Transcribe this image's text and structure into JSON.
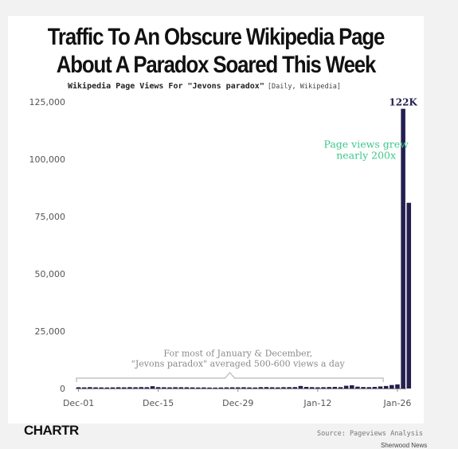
{
  "title_lines": [
    "Traffic To An Obscure Wikipedia Page",
    "About A Paradox Soared This Week"
  ],
  "subtitle": "Wikipedia Page Views For \"Jevons paradox\"",
  "subtitle_note": "[Daily, Wikipedia]",
  "brand": "CHARTR",
  "source": "Source: Pageviews Analysis",
  "credit": "Sherwood News",
  "colors": {
    "bars": "#231f4f",
    "highlight_text": "#3cc88c",
    "annotation_text": "#8a8a8a",
    "bracket": "#b8b8b8",
    "axis": "#888888"
  },
  "chart_data": {
    "type": "bar",
    "title": "Wikipedia Page Views For \"Jevons paradox\"",
    "xlabel": "",
    "ylabel": "",
    "ylim": [
      0,
      125000
    ],
    "y_ticks": [
      0,
      25000,
      50000,
      75000,
      100000,
      125000
    ],
    "y_tick_labels": [
      "0",
      "25,000",
      "50,000",
      "75,000",
      "100,000",
      "125,000"
    ],
    "x_tick_labels": [
      "Dec-01",
      "Dec-15",
      "Dec-29",
      "Jan-12",
      "Jan-26"
    ],
    "x_tick_dates": [
      "2024-12-01",
      "2024-12-15",
      "2024-12-29",
      "2025-01-12",
      "2025-01-26"
    ],
    "series": [
      {
        "dates": [
          "2024-12-01",
          "2024-12-02",
          "2024-12-03",
          "2024-12-04",
          "2024-12-05",
          "2024-12-06",
          "2024-12-07",
          "2024-12-08",
          "2024-12-09",
          "2024-12-10",
          "2024-12-11",
          "2024-12-12",
          "2024-12-13",
          "2024-12-14",
          "2024-12-15",
          "2024-12-16",
          "2024-12-17",
          "2024-12-18",
          "2024-12-19",
          "2024-12-20",
          "2024-12-21",
          "2024-12-22",
          "2024-12-23",
          "2024-12-24",
          "2024-12-25",
          "2024-12-26",
          "2024-12-27",
          "2024-12-28",
          "2024-12-29",
          "2024-12-30",
          "2024-12-31",
          "2025-01-01",
          "2025-01-02",
          "2025-01-03",
          "2025-01-04",
          "2025-01-05",
          "2025-01-06",
          "2025-01-07",
          "2025-01-08",
          "2025-01-09",
          "2025-01-10",
          "2025-01-11",
          "2025-01-12",
          "2025-01-13",
          "2025-01-14",
          "2025-01-15",
          "2025-01-16",
          "2025-01-17",
          "2025-01-18",
          "2025-01-19",
          "2025-01-20",
          "2025-01-21",
          "2025-01-22",
          "2025-01-23",
          "2025-01-24",
          "2025-01-25",
          "2025-01-26",
          "2025-01-27",
          "2025-01-28"
        ],
        "values": [
          550,
          500,
          600,
          520,
          480,
          450,
          500,
          560,
          520,
          600,
          550,
          620,
          580,
          1000,
          600,
          550,
          520,
          580,
          560,
          540,
          500,
          450,
          480,
          420,
          400,
          460,
          500,
          540,
          520,
          560,
          480,
          450,
          600,
          620,
          550,
          500,
          580,
          600,
          620,
          1100,
          700,
          600,
          520,
          580,
          650,
          700,
          600,
          1200,
          1400,
          800,
          650,
          600,
          700,
          900,
          1100,
          1500,
          1800,
          122000,
          81000
        ]
      }
    ],
    "annotations": [
      {
        "text_lines": [
          "Page views grew",
          "nearly 200x"
        ],
        "x": "2025-01-21",
        "y": 105000
      },
      {
        "text_lines": [
          "For most of January & December,",
          "\"Jevons paradox\" averaged 500-600 views a day"
        ],
        "x": "2024-12-29",
        "y": 13000
      },
      {
        "text": "122K",
        "x": "2025-01-27",
        "y": 122000
      }
    ]
  }
}
